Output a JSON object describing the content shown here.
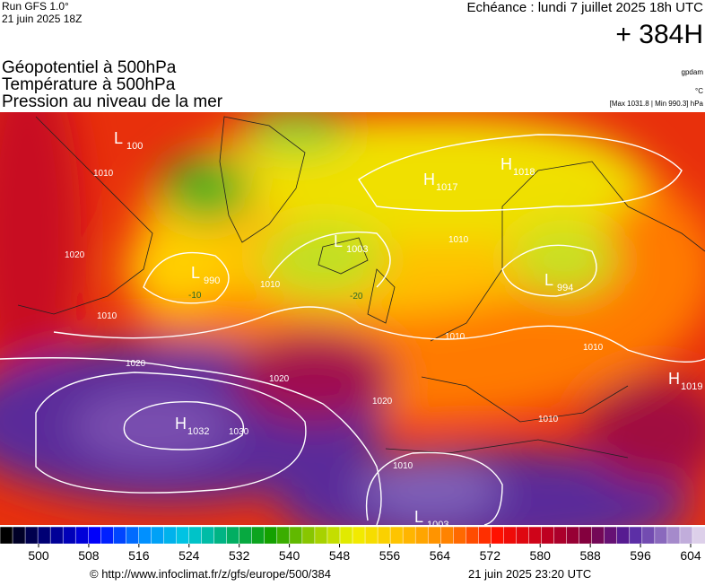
{
  "header": {
    "run": "Run GFS 1.0°",
    "run_date": "21 juin 2025 18Z",
    "echeance": "Echéance : lundi 7 juillet 2025 18h UTC",
    "lead": "+ 384H",
    "titles": [
      "Géopotentiel à 500hPa",
      "Température à 500hPa",
      "Pression au niveau de la mer"
    ],
    "unit_geo": "gpdam",
    "unit_temp": "°C",
    "range": "[Max 1031.8 | Min 990.3] hPa"
  },
  "map": {
    "centers": [
      {
        "kind": "H",
        "value": "1032"
      },
      {
        "kind": "H",
        "value": "1017"
      },
      {
        "kind": "H",
        "value": "1018"
      },
      {
        "kind": "H",
        "value": "1019"
      },
      {
        "kind": "L",
        "value": "990"
      },
      {
        "kind": "L",
        "value": "994"
      },
      {
        "kind": "L",
        "value": "1003"
      },
      {
        "kind": "L",
        "value": "1003"
      },
      {
        "kind": "L",
        "value": "100"
      }
    ],
    "isobar_labels": [
      "1010",
      "1020",
      "1010",
      "1010",
      "1020",
      "1020",
      "1030",
      "1020",
      "1010",
      "1010",
      "1010",
      "1010",
      "1010"
    ],
    "temp_labels": [
      "-10",
      "-20"
    ]
  },
  "colorbar": {
    "ticks": [
      500,
      508,
      516,
      524,
      532,
      540,
      548,
      556,
      564,
      572,
      580,
      588,
      596,
      604
    ]
  },
  "footer": {
    "url": "© http://www.infoclimat.fr/z/gfs/europe/500/384",
    "issued": "21 juin 2025 23:20 UTC"
  }
}
